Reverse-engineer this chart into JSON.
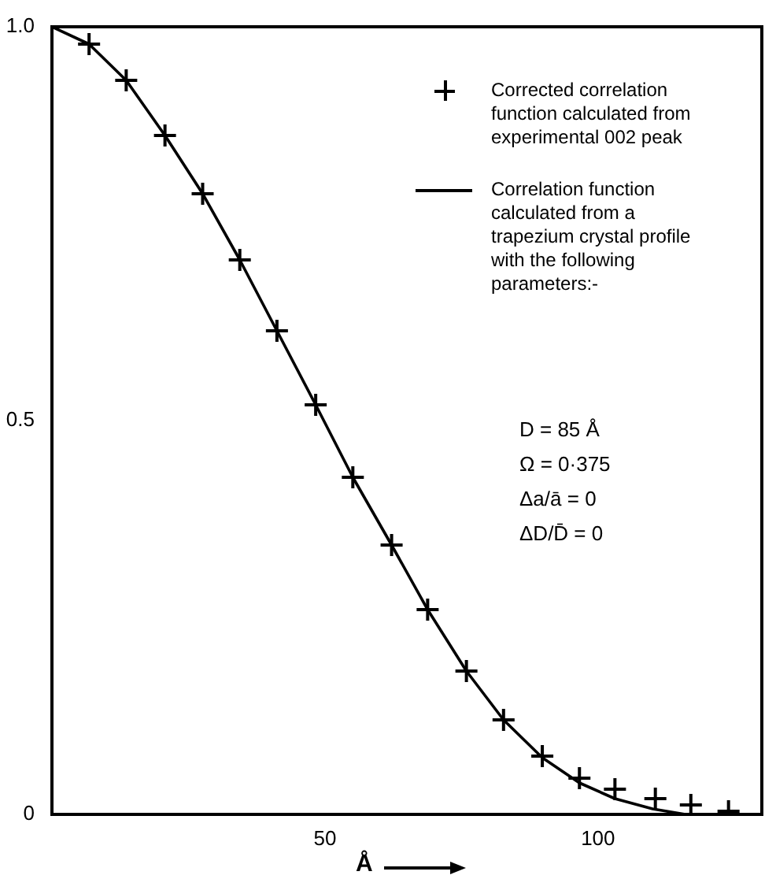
{
  "chart_data": {
    "type": "scatter",
    "xlabel": "Å",
    "xlim": [
      0,
      130
    ],
    "ylim": [
      0,
      1
    ],
    "xticks": [
      50,
      100
    ],
    "yticks": [
      0,
      {
        "value": 0.5,
        "label": "0.5"
      },
      {
        "value": 1,
        "label": "1.0"
      }
    ],
    "grid": false,
    "legend": "right",
    "marker": "cross",
    "series": [
      {
        "name": "Corrected correlation function calculated from experimental 002 peak",
        "color": "#000000",
        "x": [
          6.8,
          13.6,
          20.7,
          27.6,
          34.4,
          41.2,
          48.3,
          55.1,
          62.2,
          68.8,
          75.9,
          82.7,
          89.8,
          96.6,
          103.1,
          110.5,
          117,
          123.9
        ],
        "values": [
          0.978,
          0.932,
          0.862,
          0.788,
          0.704,
          0.614,
          0.52,
          0.428,
          0.342,
          0.26,
          0.182,
          0.12,
          0.074,
          0.046,
          0.032,
          0.02,
          0.012,
          0.004
        ]
      },
      {
        "name": "Correlation function calculated from a trapezium crystal profile with the following parameters:-",
        "type": "line",
        "color": "#000000",
        "marker": "none",
        "line_style": "solid",
        "x": [
          0,
          6.8,
          13.6,
          20.7,
          27.6,
          34.4,
          41.2,
          48.3,
          55.1,
          62.2,
          68.8,
          75.9,
          82.7,
          89.8,
          96.6,
          103.1,
          110,
          116,
          130
        ],
        "values": [
          1,
          0.978,
          0.932,
          0.862,
          0.788,
          0.704,
          0.614,
          0.52,
          0.428,
          0.342,
          0.26,
          0.182,
          0.12,
          0.072,
          0.04,
          0.02,
          0.007,
          0,
          0
        ]
      }
    ],
    "annotations": [
      "D = 85 Å",
      "Ω = 0·375",
      "Δa/ā = 0",
      "ΔD/D̄ = 0"
    ]
  }
}
